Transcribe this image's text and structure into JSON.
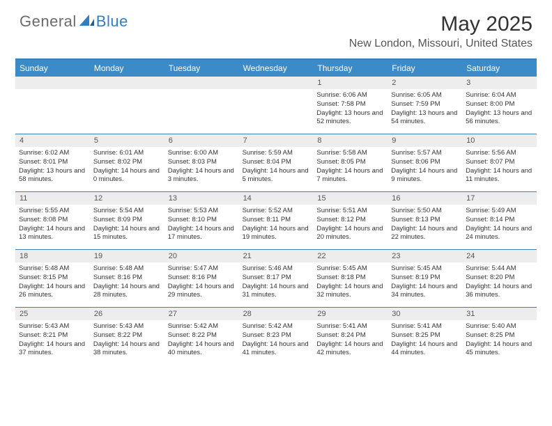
{
  "brand": {
    "part1": "General",
    "part2": "Blue"
  },
  "title": "May 2025",
  "location": "New London, Missouri, United States",
  "colors": {
    "header_bg": "#3b8bc9",
    "header_text": "#ffffff",
    "border": "#3b7fb8",
    "daynum_bg": "#ededed",
    "daynum_text": "#555555",
    "body_text": "#333333",
    "logo_gray": "#6b6b6b",
    "logo_blue": "#2f7fc2",
    "page_bg": "#ffffff"
  },
  "day_labels": [
    "Sunday",
    "Monday",
    "Tuesday",
    "Wednesday",
    "Thursday",
    "Friday",
    "Saturday"
  ],
  "weeks": [
    [
      {
        "day": "",
        "sunrise": "",
        "sunset": "",
        "daylight": ""
      },
      {
        "day": "",
        "sunrise": "",
        "sunset": "",
        "daylight": ""
      },
      {
        "day": "",
        "sunrise": "",
        "sunset": "",
        "daylight": ""
      },
      {
        "day": "",
        "sunrise": "",
        "sunset": "",
        "daylight": ""
      },
      {
        "day": "1",
        "sunrise": "Sunrise: 6:06 AM",
        "sunset": "Sunset: 7:58 PM",
        "daylight": "Daylight: 13 hours and 52 minutes."
      },
      {
        "day": "2",
        "sunrise": "Sunrise: 6:05 AM",
        "sunset": "Sunset: 7:59 PM",
        "daylight": "Daylight: 13 hours and 54 minutes."
      },
      {
        "day": "3",
        "sunrise": "Sunrise: 6:04 AM",
        "sunset": "Sunset: 8:00 PM",
        "daylight": "Daylight: 13 hours and 56 minutes."
      }
    ],
    [
      {
        "day": "4",
        "sunrise": "Sunrise: 6:02 AM",
        "sunset": "Sunset: 8:01 PM",
        "daylight": "Daylight: 13 hours and 58 minutes."
      },
      {
        "day": "5",
        "sunrise": "Sunrise: 6:01 AM",
        "sunset": "Sunset: 8:02 PM",
        "daylight": "Daylight: 14 hours and 0 minutes."
      },
      {
        "day": "6",
        "sunrise": "Sunrise: 6:00 AM",
        "sunset": "Sunset: 8:03 PM",
        "daylight": "Daylight: 14 hours and 3 minutes."
      },
      {
        "day": "7",
        "sunrise": "Sunrise: 5:59 AM",
        "sunset": "Sunset: 8:04 PM",
        "daylight": "Daylight: 14 hours and 5 minutes."
      },
      {
        "day": "8",
        "sunrise": "Sunrise: 5:58 AM",
        "sunset": "Sunset: 8:05 PM",
        "daylight": "Daylight: 14 hours and 7 minutes."
      },
      {
        "day": "9",
        "sunrise": "Sunrise: 5:57 AM",
        "sunset": "Sunset: 8:06 PM",
        "daylight": "Daylight: 14 hours and 9 minutes."
      },
      {
        "day": "10",
        "sunrise": "Sunrise: 5:56 AM",
        "sunset": "Sunset: 8:07 PM",
        "daylight": "Daylight: 14 hours and 11 minutes."
      }
    ],
    [
      {
        "day": "11",
        "sunrise": "Sunrise: 5:55 AM",
        "sunset": "Sunset: 8:08 PM",
        "daylight": "Daylight: 14 hours and 13 minutes."
      },
      {
        "day": "12",
        "sunrise": "Sunrise: 5:54 AM",
        "sunset": "Sunset: 8:09 PM",
        "daylight": "Daylight: 14 hours and 15 minutes."
      },
      {
        "day": "13",
        "sunrise": "Sunrise: 5:53 AM",
        "sunset": "Sunset: 8:10 PM",
        "daylight": "Daylight: 14 hours and 17 minutes."
      },
      {
        "day": "14",
        "sunrise": "Sunrise: 5:52 AM",
        "sunset": "Sunset: 8:11 PM",
        "daylight": "Daylight: 14 hours and 19 minutes."
      },
      {
        "day": "15",
        "sunrise": "Sunrise: 5:51 AM",
        "sunset": "Sunset: 8:12 PM",
        "daylight": "Daylight: 14 hours and 20 minutes."
      },
      {
        "day": "16",
        "sunrise": "Sunrise: 5:50 AM",
        "sunset": "Sunset: 8:13 PM",
        "daylight": "Daylight: 14 hours and 22 minutes."
      },
      {
        "day": "17",
        "sunrise": "Sunrise: 5:49 AM",
        "sunset": "Sunset: 8:14 PM",
        "daylight": "Daylight: 14 hours and 24 minutes."
      }
    ],
    [
      {
        "day": "18",
        "sunrise": "Sunrise: 5:48 AM",
        "sunset": "Sunset: 8:15 PM",
        "daylight": "Daylight: 14 hours and 26 minutes."
      },
      {
        "day": "19",
        "sunrise": "Sunrise: 5:48 AM",
        "sunset": "Sunset: 8:16 PM",
        "daylight": "Daylight: 14 hours and 28 minutes."
      },
      {
        "day": "20",
        "sunrise": "Sunrise: 5:47 AM",
        "sunset": "Sunset: 8:16 PM",
        "daylight": "Daylight: 14 hours and 29 minutes."
      },
      {
        "day": "21",
        "sunrise": "Sunrise: 5:46 AM",
        "sunset": "Sunset: 8:17 PM",
        "daylight": "Daylight: 14 hours and 31 minutes."
      },
      {
        "day": "22",
        "sunrise": "Sunrise: 5:45 AM",
        "sunset": "Sunset: 8:18 PM",
        "daylight": "Daylight: 14 hours and 32 minutes."
      },
      {
        "day": "23",
        "sunrise": "Sunrise: 5:45 AM",
        "sunset": "Sunset: 8:19 PM",
        "daylight": "Daylight: 14 hours and 34 minutes."
      },
      {
        "day": "24",
        "sunrise": "Sunrise: 5:44 AM",
        "sunset": "Sunset: 8:20 PM",
        "daylight": "Daylight: 14 hours and 36 minutes."
      }
    ],
    [
      {
        "day": "25",
        "sunrise": "Sunrise: 5:43 AM",
        "sunset": "Sunset: 8:21 PM",
        "daylight": "Daylight: 14 hours and 37 minutes."
      },
      {
        "day": "26",
        "sunrise": "Sunrise: 5:43 AM",
        "sunset": "Sunset: 8:22 PM",
        "daylight": "Daylight: 14 hours and 38 minutes."
      },
      {
        "day": "27",
        "sunrise": "Sunrise: 5:42 AM",
        "sunset": "Sunset: 8:22 PM",
        "daylight": "Daylight: 14 hours and 40 minutes."
      },
      {
        "day": "28",
        "sunrise": "Sunrise: 5:42 AM",
        "sunset": "Sunset: 8:23 PM",
        "daylight": "Daylight: 14 hours and 41 minutes."
      },
      {
        "day": "29",
        "sunrise": "Sunrise: 5:41 AM",
        "sunset": "Sunset: 8:24 PM",
        "daylight": "Daylight: 14 hours and 42 minutes."
      },
      {
        "day": "30",
        "sunrise": "Sunrise: 5:41 AM",
        "sunset": "Sunset: 8:25 PM",
        "daylight": "Daylight: 14 hours and 44 minutes."
      },
      {
        "day": "31",
        "sunrise": "Sunrise: 5:40 AM",
        "sunset": "Sunset: 8:25 PM",
        "daylight": "Daylight: 14 hours and 45 minutes."
      }
    ]
  ]
}
